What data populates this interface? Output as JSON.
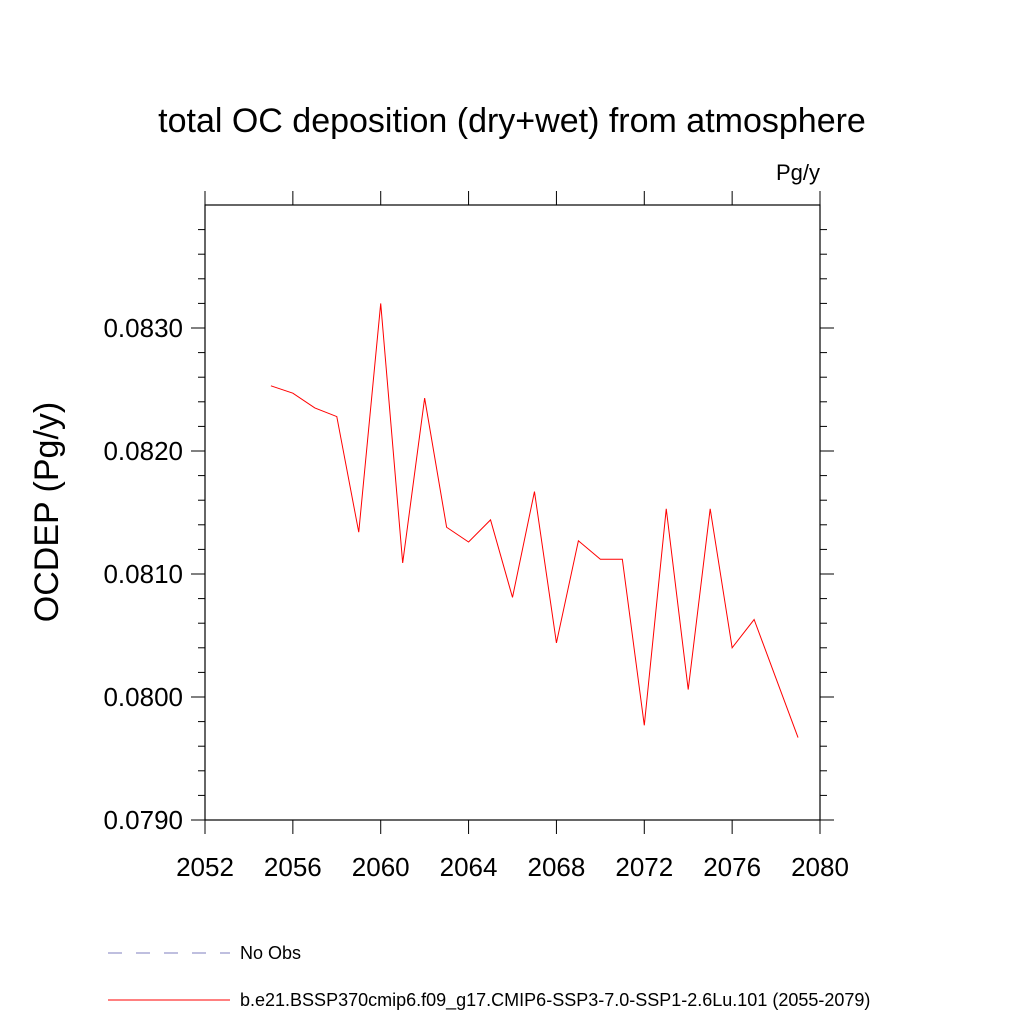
{
  "chart_data": {
    "type": "line",
    "title": "total OC deposition (dry+wet) from atmosphere",
    "units_label": "Pg/y",
    "ylabel": "OCDEP  (Pg/y)",
    "xlabel": "",
    "xlim": [
      2052,
      2080
    ],
    "ylim": [
      0.079,
      0.084
    ],
    "x_ticks": [
      2052,
      2056,
      2060,
      2064,
      2068,
      2072,
      2076,
      2080
    ],
    "y_ticks": [
      0.079,
      0.08,
      0.081,
      0.082,
      0.083
    ],
    "x_tick_labels": [
      "2052",
      "2056",
      "2060",
      "2064",
      "2068",
      "2072",
      "2076",
      "2080"
    ],
    "y_tick_labels": [
      "0.0790",
      "0.0800",
      "0.0810",
      "0.0820",
      "0.0830"
    ],
    "grid": false,
    "legend_placement": "bottom",
    "series": [
      {
        "name": "b.e21.BSSP370cmip6.f09_g17.CMIP6-SSP3-7.0-SSP1-2.6Lu.101 (2055-2079)",
        "color": "#ff0000",
        "style": "solid",
        "x": [
          2055,
          2056,
          2057,
          2058,
          2059,
          2060,
          2061,
          2062,
          2063,
          2064,
          2065,
          2066,
          2067,
          2068,
          2069,
          2070,
          2071,
          2072,
          2073,
          2074,
          2075,
          2076,
          2077,
          2078,
          2079
        ],
        "y": [
          0.08253,
          0.08247,
          0.08235,
          0.08228,
          0.08134,
          0.0832,
          0.08109,
          0.08243,
          0.08138,
          0.08126,
          0.08144,
          0.08081,
          0.08167,
          0.08044,
          0.08127,
          0.08112,
          0.08112,
          0.07977,
          0.08153,
          0.08006,
          0.08153,
          0.0804,
          0.08063,
          0.08015,
          0.07967
        ]
      }
    ],
    "legend": [
      {
        "label": "No Obs",
        "color": "#7f7fbf",
        "style": "dashed"
      },
      {
        "label": "b.e21.BSSP370cmip6.f09_g17.CMIP6-SSP3-7.0-SSP1-2.6Lu.101 (2055-2079)",
        "color": "#ff0000",
        "style": "solid"
      }
    ]
  }
}
